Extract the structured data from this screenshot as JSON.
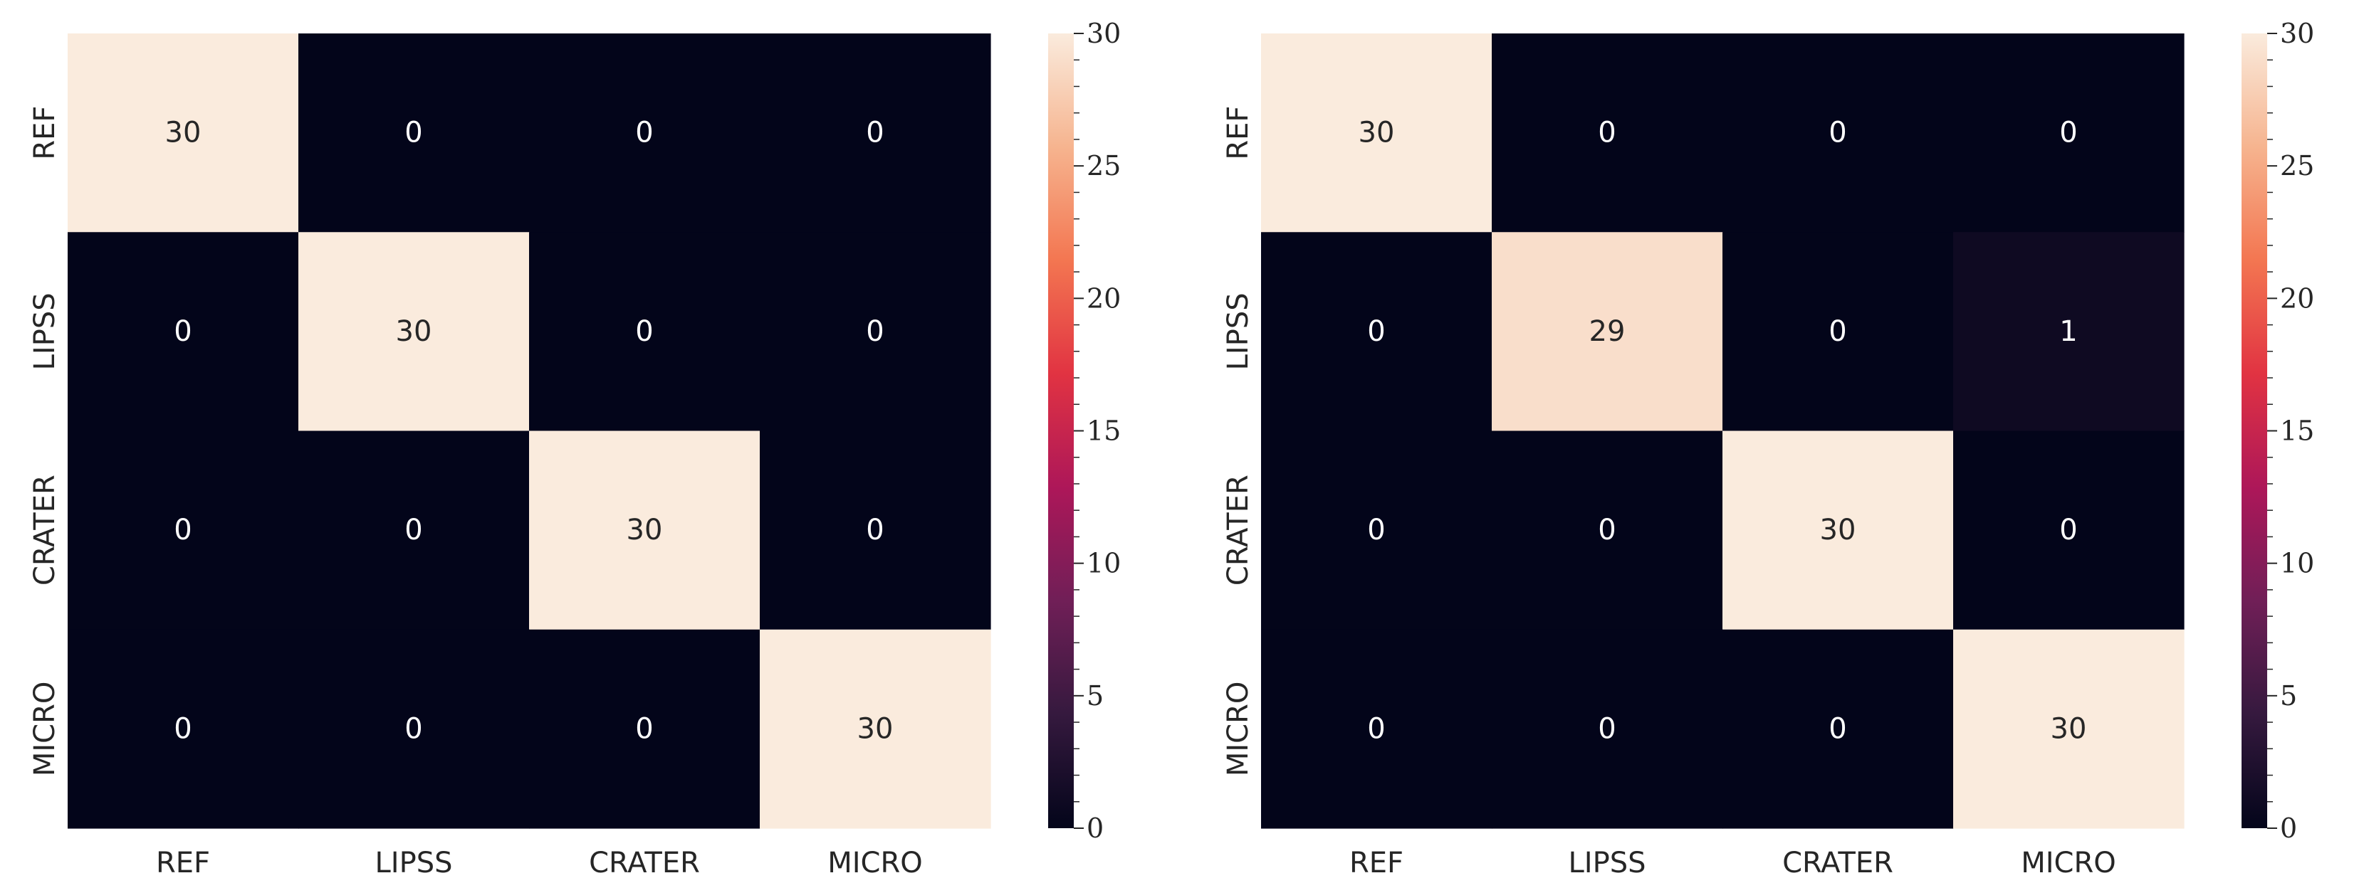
{
  "chart_data": [
    {
      "type": "heatmap",
      "title": "",
      "xlabel": "",
      "ylabel": "",
      "x_categories": [
        "REF",
        "LIPSS",
        "CRATER",
        "MICRO"
      ],
      "y_categories": [
        "REF",
        "LIPSS",
        "CRATER",
        "MICRO"
      ],
      "matrix": [
        [
          30,
          0,
          0,
          0
        ],
        [
          0,
          30,
          0,
          0
        ],
        [
          0,
          0,
          30,
          0
        ],
        [
          0,
          0,
          0,
          30
        ]
      ],
      "colorbar": {
        "min": 0,
        "max": 30,
        "ticks": [
          "0",
          "5",
          "10",
          "15",
          "20",
          "25",
          "30"
        ]
      }
    },
    {
      "type": "heatmap",
      "title": "",
      "xlabel": "",
      "ylabel": "",
      "x_categories": [
        "REF",
        "LIPSS",
        "CRATER",
        "MICRO"
      ],
      "y_categories": [
        "REF",
        "LIPSS",
        "CRATER",
        "MICRO"
      ],
      "matrix": [
        [
          30,
          0,
          0,
          0
        ],
        [
          0,
          29,
          0,
          1
        ],
        [
          0,
          0,
          30,
          0
        ],
        [
          0,
          0,
          0,
          30
        ]
      ],
      "colorbar": {
        "min": 0,
        "max": 30,
        "ticks": [
          "0",
          "5",
          "10",
          "15",
          "20",
          "25",
          "30"
        ]
      }
    }
  ],
  "colormap": {
    "name": "rocket",
    "stops": [
      "#03051a",
      "#35193e",
      "#701f57",
      "#ad1759",
      "#e13342",
      "#f37651",
      "#f6b48f",
      "#faebdd"
    ]
  }
}
